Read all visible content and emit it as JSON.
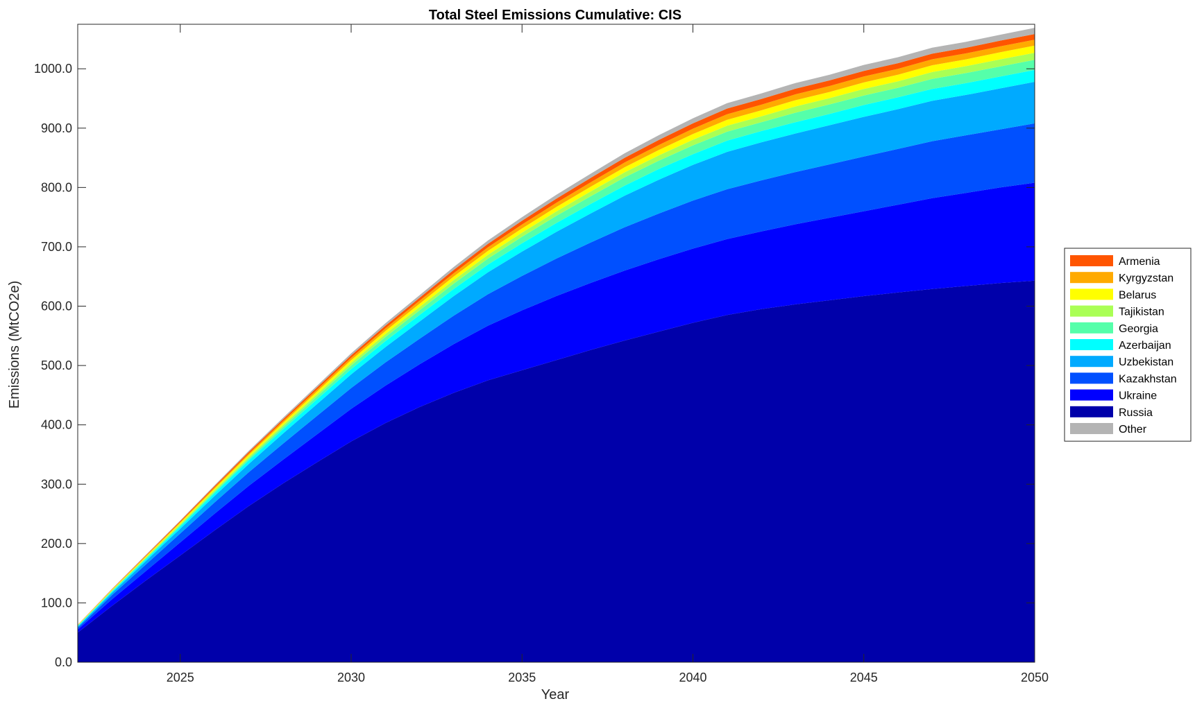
{
  "chart_data": {
    "type": "area",
    "stacked": true,
    "title": "Total Steel Emissions Cumulative: CIS",
    "xlabel": "Year",
    "ylabel": "Emissions (MtCO2e)",
    "xlim": [
      2022,
      2050
    ],
    "ylim": [
      0,
      1075
    ],
    "xticks": [
      2025,
      2030,
      2035,
      2040,
      2045,
      2050
    ],
    "yticks": [
      0,
      100,
      200,
      300,
      400,
      500,
      600,
      700,
      800,
      900,
      1000
    ],
    "ytick_format": "one-decimal",
    "grid": false,
    "legend_position": "right",
    "x": [
      2022,
      2023,
      2024,
      2025,
      2026,
      2027,
      2028,
      2029,
      2030,
      2031,
      2032,
      2033,
      2034,
      2035,
      2036,
      2037,
      2038,
      2039,
      2040,
      2041,
      2042,
      2043,
      2044,
      2045,
      2046,
      2047,
      2048,
      2049,
      2050
    ],
    "series": [
      {
        "name": "Russia",
        "color": "#0000AA",
        "values": [
          50,
          95,
          138,
          180,
          222,
          263,
          301,
          337,
          372,
          403,
          430,
          454,
          475,
          492,
          509,
          526,
          542,
          557,
          572,
          585,
          595,
          603,
          610,
          617,
          623,
          629,
          634,
          639,
          643
        ]
      },
      {
        "name": "Ukraine",
        "color": "#0000FF",
        "values": [
          5,
          11,
          16,
          22,
          28,
          34,
          40,
          47,
          55,
          63,
          72,
          82,
          92,
          101,
          108,
          113,
          118,
          122,
          125,
          128,
          131,
          135,
          139,
          143,
          148,
          153,
          157,
          161,
          165
        ]
      },
      {
        "name": "Kazakhstan",
        "color": "#0050FF",
        "values": [
          3,
          7,
          11,
          15,
          19,
          23,
          27,
          31,
          35,
          39,
          43,
          48,
          53,
          58,
          63,
          68,
          73,
          77,
          81,
          84,
          86,
          88,
          90,
          92,
          94,
          96,
          97,
          98,
          100
        ]
      },
      {
        "name": "Uzbekistan",
        "color": "#00AAFF",
        "values": [
          2,
          4,
          6,
          8,
          11,
          14,
          17,
          20,
          23,
          26,
          29,
          33,
          37,
          41,
          45,
          49,
          53,
          57,
          60,
          63,
          64,
          65,
          66,
          67,
          67,
          68,
          68,
          69,
          70
        ]
      },
      {
        "name": "Azerbaijan",
        "color": "#00FFFF",
        "values": [
          1,
          2,
          3,
          4,
          5,
          6,
          7,
          8,
          9,
          10,
          11,
          12,
          13,
          14,
          15,
          16,
          17,
          18,
          18,
          19,
          19,
          19,
          19,
          20,
          20,
          20,
          20,
          20,
          20
        ]
      },
      {
        "name": "Georgia",
        "color": "#55FFAA",
        "values": [
          0.5,
          1,
          1.5,
          2,
          2.5,
          3,
          4,
          5,
          6,
          7,
          8,
          9,
          10,
          11,
          12,
          13,
          14,
          14,
          15,
          15,
          15,
          16,
          16,
          16,
          16,
          17,
          17,
          17,
          17
        ]
      },
      {
        "name": "Tajikistan",
        "color": "#AAFF55",
        "values": [
          0.5,
          1,
          1.5,
          2,
          2.5,
          3,
          3.5,
          4,
          4.5,
          5,
          5.5,
          6,
          6.5,
          7,
          7.5,
          8,
          8.5,
          9,
          9.5,
          10,
          10,
          10.5,
          10.5,
          11,
          11,
          11.5,
          11.5,
          12,
          12
        ]
      },
      {
        "name": "Belarus",
        "color": "#FFFF00",
        "values": [
          0.5,
          1,
          1.5,
          2,
          2.5,
          3,
          3.5,
          4,
          4.5,
          5,
          5.5,
          6,
          6.5,
          7,
          7.5,
          8,
          8.5,
          9,
          9.5,
          10,
          10,
          10.5,
          10.5,
          11,
          11,
          11.5,
          11.5,
          12,
          12
        ]
      },
      {
        "name": "Kyrgyzstan",
        "color": "#FFAA00",
        "values": [
          0.3,
          0.6,
          1,
          1.5,
          2,
          2.5,
          3,
          3.5,
          4,
          4.5,
          5,
          5.5,
          6,
          6.5,
          7,
          7.5,
          8,
          8.5,
          9,
          9.5,
          9.5,
          10,
          10,
          10,
          10,
          10,
          10,
          10,
          10
        ]
      },
      {
        "name": "Armenia",
        "color": "#FF5500",
        "values": [
          0.3,
          0.6,
          1,
          1.5,
          2,
          2.5,
          3,
          3.5,
          4,
          4.5,
          5,
          5.5,
          6,
          6.5,
          7,
          7.5,
          8,
          8.5,
          9,
          9.5,
          9.5,
          9.5,
          9.5,
          9.5,
          9.5,
          9.5,
          9.5,
          9.5,
          9.5
        ]
      },
      {
        "name": "Other",
        "color": "#B4B4B4",
        "values": [
          0.2,
          0.5,
          0.8,
          1,
          1.5,
          2,
          2.5,
          3,
          3.5,
          4,
          4.5,
          5,
          5.5,
          6,
          6.5,
          7,
          7.5,
          8,
          8.5,
          9,
          9.5,
          9.5,
          9.5,
          10,
          10,
          10,
          10,
          10,
          10.5
        ]
      }
    ]
  }
}
